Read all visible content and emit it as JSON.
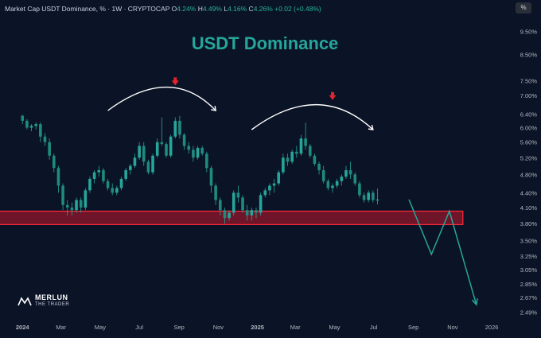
{
  "header": {
    "symbol": "Market Cap USDT Dominance, % · 1W · CRYPTOCAP",
    "o_label": "O",
    "o_value": "4.24%",
    "h_label": "H",
    "h_value": "4.49%",
    "l_label": "L",
    "l_value": "4.16%",
    "c_label": "C",
    "c_value": "4.26%",
    "change": "+0.02 (+0.48%)"
  },
  "percent_button": "%",
  "logo": {
    "line1": "MERLUN",
    "line2": "THE TRADER"
  },
  "colors": {
    "background": "#0b1326",
    "bull": "#26a69a",
    "bear": "#26a69a",
    "zone": "#c2182b",
    "arrow": "#e0252b",
    "projection": "#26a69a"
  },
  "chart_data": {
    "type": "candlestick",
    "title": "USDT Dominance",
    "y_scale": "log",
    "ylim": [
      2.42,
      10.3
    ],
    "y_ticks": [
      "9.50%",
      "8.50%",
      "7.50%",
      "7.00%",
      "6.40%",
      "6.00%",
      "5.60%",
      "5.20%",
      "4.80%",
      "4.40%",
      "4.10%",
      "3.80%",
      "3.50%",
      "3.25%",
      "3.05%",
      "2.85%",
      "2.67%",
      "2.49%"
    ],
    "x_ticks": [
      "2024",
      "Mar",
      "May",
      "Jul",
      "Sep",
      "Nov",
      "2025",
      "Mar",
      "May",
      "Jul",
      "Sep",
      "Nov",
      "2026"
    ],
    "x_start": "2024-01-01",
    "candles": [
      [
        6.35,
        6.38,
        6.1,
        6.2
      ],
      [
        6.2,
        6.25,
        5.95,
        6.0
      ],
      [
        6.0,
        6.1,
        5.9,
        6.05
      ],
      [
        6.05,
        6.15,
        5.95,
        6.1
      ],
      [
        6.1,
        6.15,
        5.6,
        5.75
      ],
      [
        5.75,
        5.85,
        5.5,
        5.6
      ],
      [
        5.6,
        5.7,
        5.15,
        5.25
      ],
      [
        5.25,
        5.3,
        4.85,
        4.95
      ],
      [
        4.95,
        5.0,
        4.4,
        4.55
      ],
      [
        4.55,
        4.6,
        4.05,
        4.15
      ],
      [
        4.15,
        4.25,
        3.95,
        4.1
      ],
      [
        4.1,
        4.2,
        3.95,
        4.05
      ],
      [
        4.05,
        4.3,
        4.0,
        4.25
      ],
      [
        4.25,
        4.3,
        4.0,
        4.1
      ],
      [
        4.1,
        4.5,
        4.05,
        4.45
      ],
      [
        4.45,
        4.75,
        4.4,
        4.7
      ],
      [
        4.7,
        4.9,
        4.6,
        4.85
      ],
      [
        4.85,
        5.0,
        4.75,
        4.9
      ],
      [
        4.9,
        4.95,
        4.6,
        4.65
      ],
      [
        4.65,
        4.7,
        4.45,
        4.5
      ],
      [
        4.5,
        4.6,
        4.35,
        4.4
      ],
      [
        4.4,
        4.55,
        4.35,
        4.5
      ],
      [
        4.5,
        4.75,
        4.45,
        4.7
      ],
      [
        4.7,
        4.95,
        4.65,
        4.9
      ],
      [
        4.9,
        5.05,
        4.8,
        5.0
      ],
      [
        5.0,
        5.3,
        4.95,
        5.2
      ],
      [
        5.2,
        5.6,
        5.15,
        5.5
      ],
      [
        5.5,
        5.6,
        5.0,
        5.1
      ],
      [
        5.1,
        5.15,
        4.8,
        4.85
      ],
      [
        4.85,
        5.3,
        4.8,
        5.25
      ],
      [
        5.25,
        5.7,
        5.2,
        5.6
      ],
      [
        5.6,
        6.3,
        5.5,
        5.55
      ],
      [
        5.55,
        5.6,
        5.2,
        5.25
      ],
      [
        5.25,
        5.8,
        5.2,
        5.75
      ],
      [
        5.75,
        6.3,
        5.7,
        6.2
      ],
      [
        6.2,
        6.35,
        5.7,
        5.8
      ],
      [
        5.8,
        5.85,
        5.4,
        5.5
      ],
      [
        5.5,
        5.6,
        5.3,
        5.4
      ],
      [
        5.4,
        5.5,
        5.1,
        5.2
      ],
      [
        5.2,
        5.5,
        5.15,
        5.45
      ],
      [
        5.45,
        5.5,
        5.25,
        5.3
      ],
      [
        5.3,
        5.35,
        4.85,
        4.95
      ],
      [
        4.95,
        5.0,
        4.4,
        4.55
      ],
      [
        4.55,
        4.6,
        4.15,
        4.25
      ],
      [
        4.25,
        4.3,
        3.95,
        4.05
      ],
      [
        4.05,
        4.1,
        3.8,
        3.9
      ],
      [
        3.9,
        4.05,
        3.85,
        4.0
      ],
      [
        4.0,
        4.45,
        3.95,
        4.4
      ],
      [
        4.4,
        4.55,
        4.2,
        4.3
      ],
      [
        4.3,
        4.35,
        4.0,
        4.05
      ],
      [
        4.05,
        4.15,
        3.85,
        3.95
      ],
      [
        3.95,
        4.1,
        3.85,
        4.05
      ],
      [
        4.05,
        4.1,
        3.9,
        4.0
      ],
      [
        4.0,
        4.4,
        3.95,
        4.35
      ],
      [
        4.35,
        4.5,
        4.3,
        4.45
      ],
      [
        4.45,
        4.6,
        4.35,
        4.55
      ],
      [
        4.55,
        4.7,
        4.4,
        4.6
      ],
      [
        4.6,
        4.9,
        4.55,
        4.85
      ],
      [
        4.85,
        5.3,
        4.8,
        5.2
      ],
      [
        5.2,
        5.3,
        5.0,
        5.1
      ],
      [
        5.1,
        5.4,
        5.05,
        5.35
      ],
      [
        5.35,
        5.5,
        5.2,
        5.3
      ],
      [
        5.3,
        5.8,
        5.25,
        5.7
      ],
      [
        5.7,
        6.15,
        5.4,
        5.5
      ],
      [
        5.5,
        5.55,
        5.2,
        5.25
      ],
      [
        5.25,
        5.3,
        5.0,
        5.05
      ],
      [
        5.05,
        5.1,
        4.8,
        4.9
      ],
      [
        4.9,
        5.0,
        4.6,
        4.65
      ],
      [
        4.65,
        4.7,
        4.45,
        4.5
      ],
      [
        4.5,
        4.6,
        4.4,
        4.55
      ],
      [
        4.55,
        4.7,
        4.5,
        4.65
      ],
      [
        4.65,
        4.8,
        4.55,
        4.75
      ],
      [
        4.75,
        5.0,
        4.7,
        4.9
      ],
      [
        4.9,
        5.1,
        4.7,
        4.8
      ],
      [
        4.8,
        4.85,
        4.55,
        4.6
      ],
      [
        4.6,
        4.65,
        4.3,
        4.35
      ],
      [
        4.35,
        4.4,
        4.2,
        4.25
      ],
      [
        4.25,
        4.45,
        4.2,
        4.4
      ],
      [
        4.4,
        4.45,
        4.2,
        4.25
      ],
      [
        4.24,
        4.49,
        4.16,
        4.26
      ]
    ],
    "support_zone": [
      3.78,
      4.03
    ],
    "projection": [
      [
        "2025-08-25",
        4.26
      ],
      [
        "2025-09-29",
        3.28
      ],
      [
        "2025-10-27",
        4.03
      ],
      [
        "2025-12-08",
        2.58
      ]
    ],
    "arcs": [
      {
        "from": "2024-05-13",
        "top": "2024-08-19",
        "to": "2024-10-28"
      },
      {
        "from": "2024-12-23",
        "top": "2025-04-07",
        "to": "2025-06-30"
      }
    ],
    "down_arrows": [
      [
        "2024-08-26",
        7.45
      ],
      [
        "2025-04-28",
        6.95
      ]
    ]
  }
}
